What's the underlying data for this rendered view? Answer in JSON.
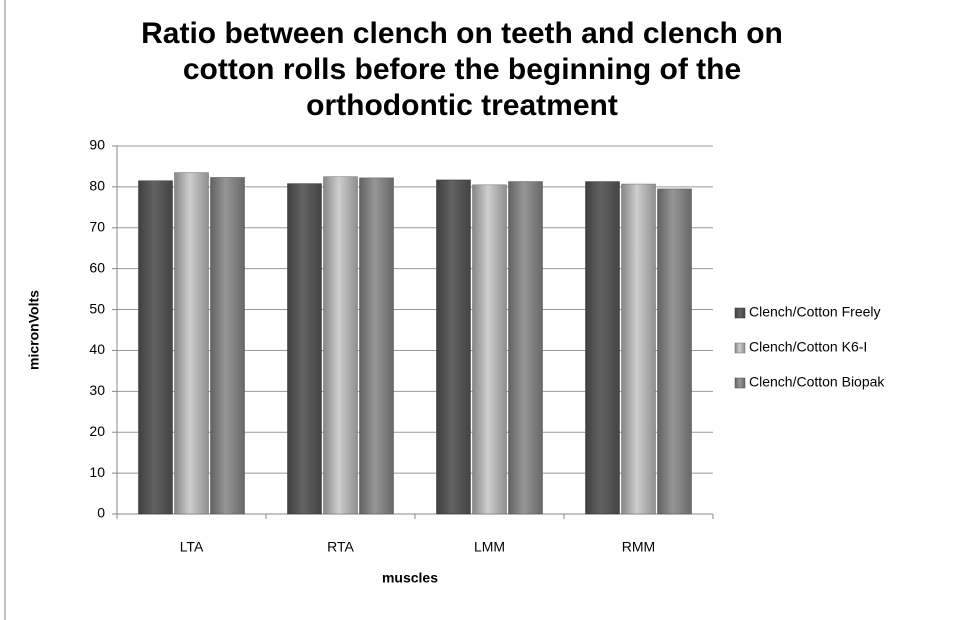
{
  "chart_data": {
    "type": "bar",
    "title": "Ratio between clench on teeth and clench on cotton rolls before the beginning of the orthodontic treatment",
    "x_label": "muscles",
    "y_label": "micronVolts",
    "categories": [
      "LTA",
      "RTA",
      "LMM",
      "RMM"
    ],
    "series": [
      {
        "name": "Clench/Cotton Freely",
        "color": "#555555",
        "values": [
          81.5,
          80.8,
          81.7,
          81.3
        ]
      },
      {
        "name": "Clench/Cotton K6-I",
        "color": "#b3b3b3",
        "values": [
          83.5,
          82.5,
          80.5,
          80.7
        ]
      },
      {
        "name": "Clench/Cotton Biopak",
        "color": "#828282",
        "values": [
          82.3,
          82.2,
          81.3,
          79.5
        ]
      }
    ],
    "ylim": [
      0,
      90
    ],
    "yticks": [
      0,
      10,
      20,
      30,
      40,
      50,
      60,
      70,
      80,
      90
    ],
    "grid": true,
    "legend": "right"
  }
}
